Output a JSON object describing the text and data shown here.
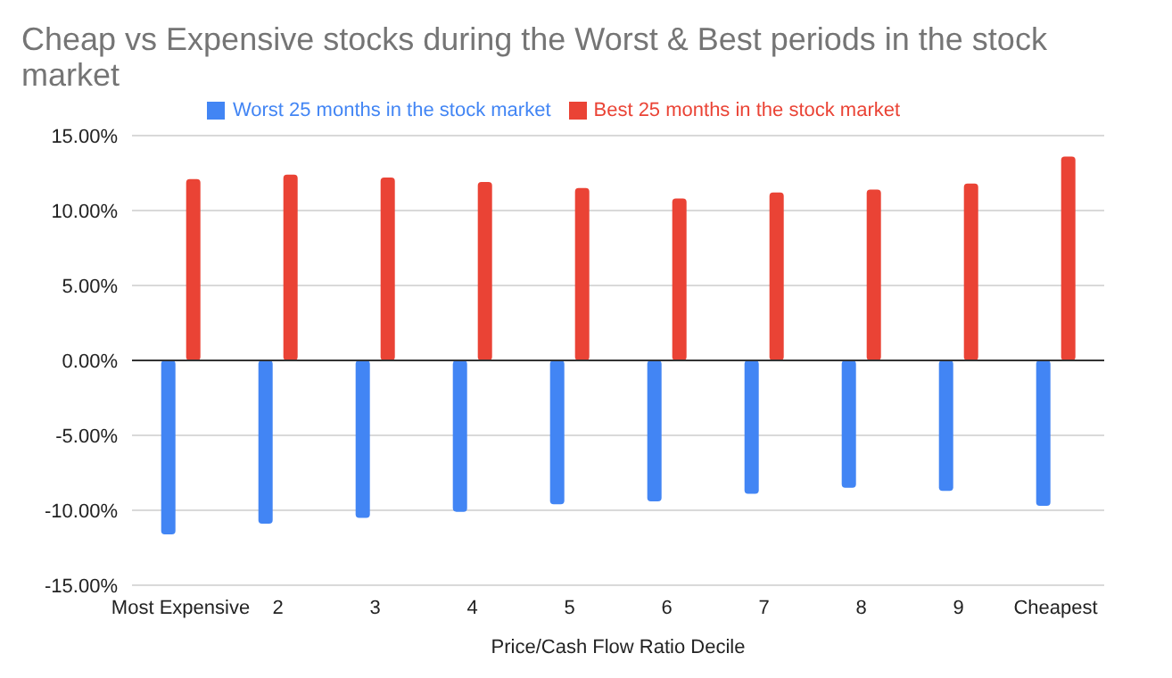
{
  "chart_data": {
    "type": "bar",
    "title": "Cheap vs Expensive stocks during the Worst & Best periods in the stock market",
    "xlabel": "Price/Cash Flow Ratio Decile",
    "categories": [
      "Most Expensive",
      "2",
      "3",
      "4",
      "5",
      "6",
      "7",
      "8",
      "9",
      "Cheapest"
    ],
    "series": [
      {
        "name": "Worst 25 months in the stock market",
        "color": "#4285f4",
        "values": [
          -11.6,
          -10.9,
          -10.5,
          -10.1,
          -9.6,
          -9.4,
          -8.9,
          -8.5,
          -8.7,
          -9.7
        ]
      },
      {
        "name": "Best 25 months in the stock market",
        "color": "#ea4335",
        "values": [
          12.1,
          12.4,
          12.2,
          11.9,
          11.5,
          10.8,
          11.2,
          11.4,
          11.8,
          13.6
        ]
      }
    ],
    "ylim": [
      -15,
      15
    ],
    "yticks": [
      {
        "value": -15,
        "label": "-15.00%"
      },
      {
        "value": -10,
        "label": "-10.00%"
      },
      {
        "value": -5,
        "label": "-5.00%"
      },
      {
        "value": 0,
        "label": "0.00%"
      },
      {
        "value": 5,
        "label": "5.00%"
      },
      {
        "value": 10,
        "label": "10.00%"
      },
      {
        "value": 15,
        "label": "15.00%"
      }
    ],
    "grid": "y",
    "legend": "top"
  }
}
